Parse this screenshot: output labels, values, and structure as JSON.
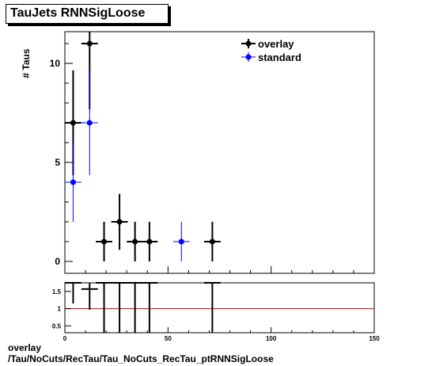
{
  "title": "TauJets RNNSigLoose",
  "footer": {
    "line1": "overlay",
    "line2": "/Tau/NoCuts/RecTau/Tau_NoCuts_RecTau_ptRNNSigLoose"
  },
  "colors": {
    "overlay": "#000000",
    "standard": "#0000ff",
    "ratio_line": "#cc0000"
  },
  "chart_data": [
    {
      "type": "scatter",
      "ylabel": "# Taus",
      "xlim": [
        0,
        150
      ],
      "ylim": [
        -0.6,
        11.6
      ],
      "yticks": [
        0,
        5,
        10
      ],
      "grid": false,
      "legend": {
        "placement": "top-right",
        "entries": [
          "overlay",
          "standard"
        ]
      },
      "series": [
        {
          "name": "overlay",
          "points": [
            {
              "x": 4,
              "y": 7,
              "xerr": 4,
              "yerr": 2.65
            },
            {
              "x": 12,
              "y": 11,
              "xerr": 4,
              "yerr": 3.32
            },
            {
              "x": 19,
              "y": 1,
              "xerr": 4,
              "yerr": 1
            },
            {
              "x": 26.5,
              "y": 2,
              "xerr": 4,
              "yerr": 1.41
            },
            {
              "x": 34,
              "y": 1,
              "xerr": 4,
              "yerr": 1
            },
            {
              "x": 41,
              "y": 1,
              "xerr": 4,
              "yerr": 1
            },
            {
              "x": 71.5,
              "y": 1,
              "xerr": 4,
              "yerr": 1
            }
          ]
        },
        {
          "name": "standard",
          "points": [
            {
              "x": 4,
              "y": 4,
              "xerr": 4,
              "yerr": 2
            },
            {
              "x": 12,
              "y": 7,
              "xerr": 4,
              "yerr": 2.65
            },
            {
              "x": 56.5,
              "y": 1,
              "xerr": 4,
              "yerr": 1
            }
          ]
        }
      ]
    },
    {
      "type": "scatter",
      "xlim": [
        0,
        150
      ],
      "ylim": [
        0.3,
        1.75
      ],
      "xticks": [
        0,
        50,
        100,
        150
      ],
      "yticks": [
        0.5,
        1,
        1.5
      ],
      "reference_line": 1,
      "series": [
        {
          "name": "",
          "points": [
            {
              "x": 4,
              "y": 1.75,
              "xerr": 4,
              "yerr": 0.6
            },
            {
              "x": 12,
              "y": 1.57,
              "xerr": 4,
              "yerr": 0.6
            },
            {
              "x": 19,
              "y": 1.75,
              "xerr": 4,
              "yerr": 1.5
            },
            {
              "x": 26.5,
              "y": 1.75,
              "xerr": 4,
              "yerr": 1.5
            },
            {
              "x": 34,
              "y": 1.75,
              "xerr": 4,
              "yerr": 1.5
            },
            {
              "x": 41,
              "y": 1.75,
              "xerr": 4,
              "yerr": 1.5
            },
            {
              "x": 71.5,
              "y": 1.75,
              "xerr": 4,
              "yerr": 1.5
            }
          ]
        }
      ]
    }
  ]
}
